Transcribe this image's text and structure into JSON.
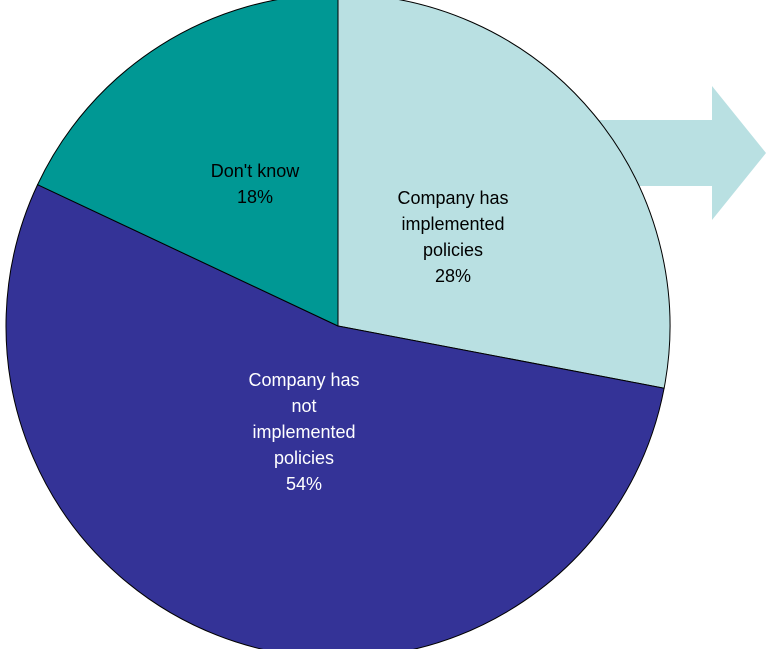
{
  "chart_data": {
    "type": "pie",
    "slices": [
      {
        "label_lines": [
          "Company has",
          "implemented",
          "policies"
        ],
        "percent_label": "28%",
        "value": 28,
        "color": "#b9e0e2",
        "text_color": "#000000"
      },
      {
        "label_lines": [
          "Company has",
          "not",
          "implemented",
          "policies"
        ],
        "percent_label": "54%",
        "value": 54,
        "color": "#343397",
        "text_color": "#ffffff"
      },
      {
        "label_lines": [
          "Don't know"
        ],
        "percent_label": "18%",
        "value": 18,
        "color": "#009894",
        "text_color": "#000000"
      }
    ],
    "start": "12 o'clock",
    "direction": "clockwise",
    "arrow": {
      "direction": "right",
      "color": "#b9e0e2"
    }
  }
}
